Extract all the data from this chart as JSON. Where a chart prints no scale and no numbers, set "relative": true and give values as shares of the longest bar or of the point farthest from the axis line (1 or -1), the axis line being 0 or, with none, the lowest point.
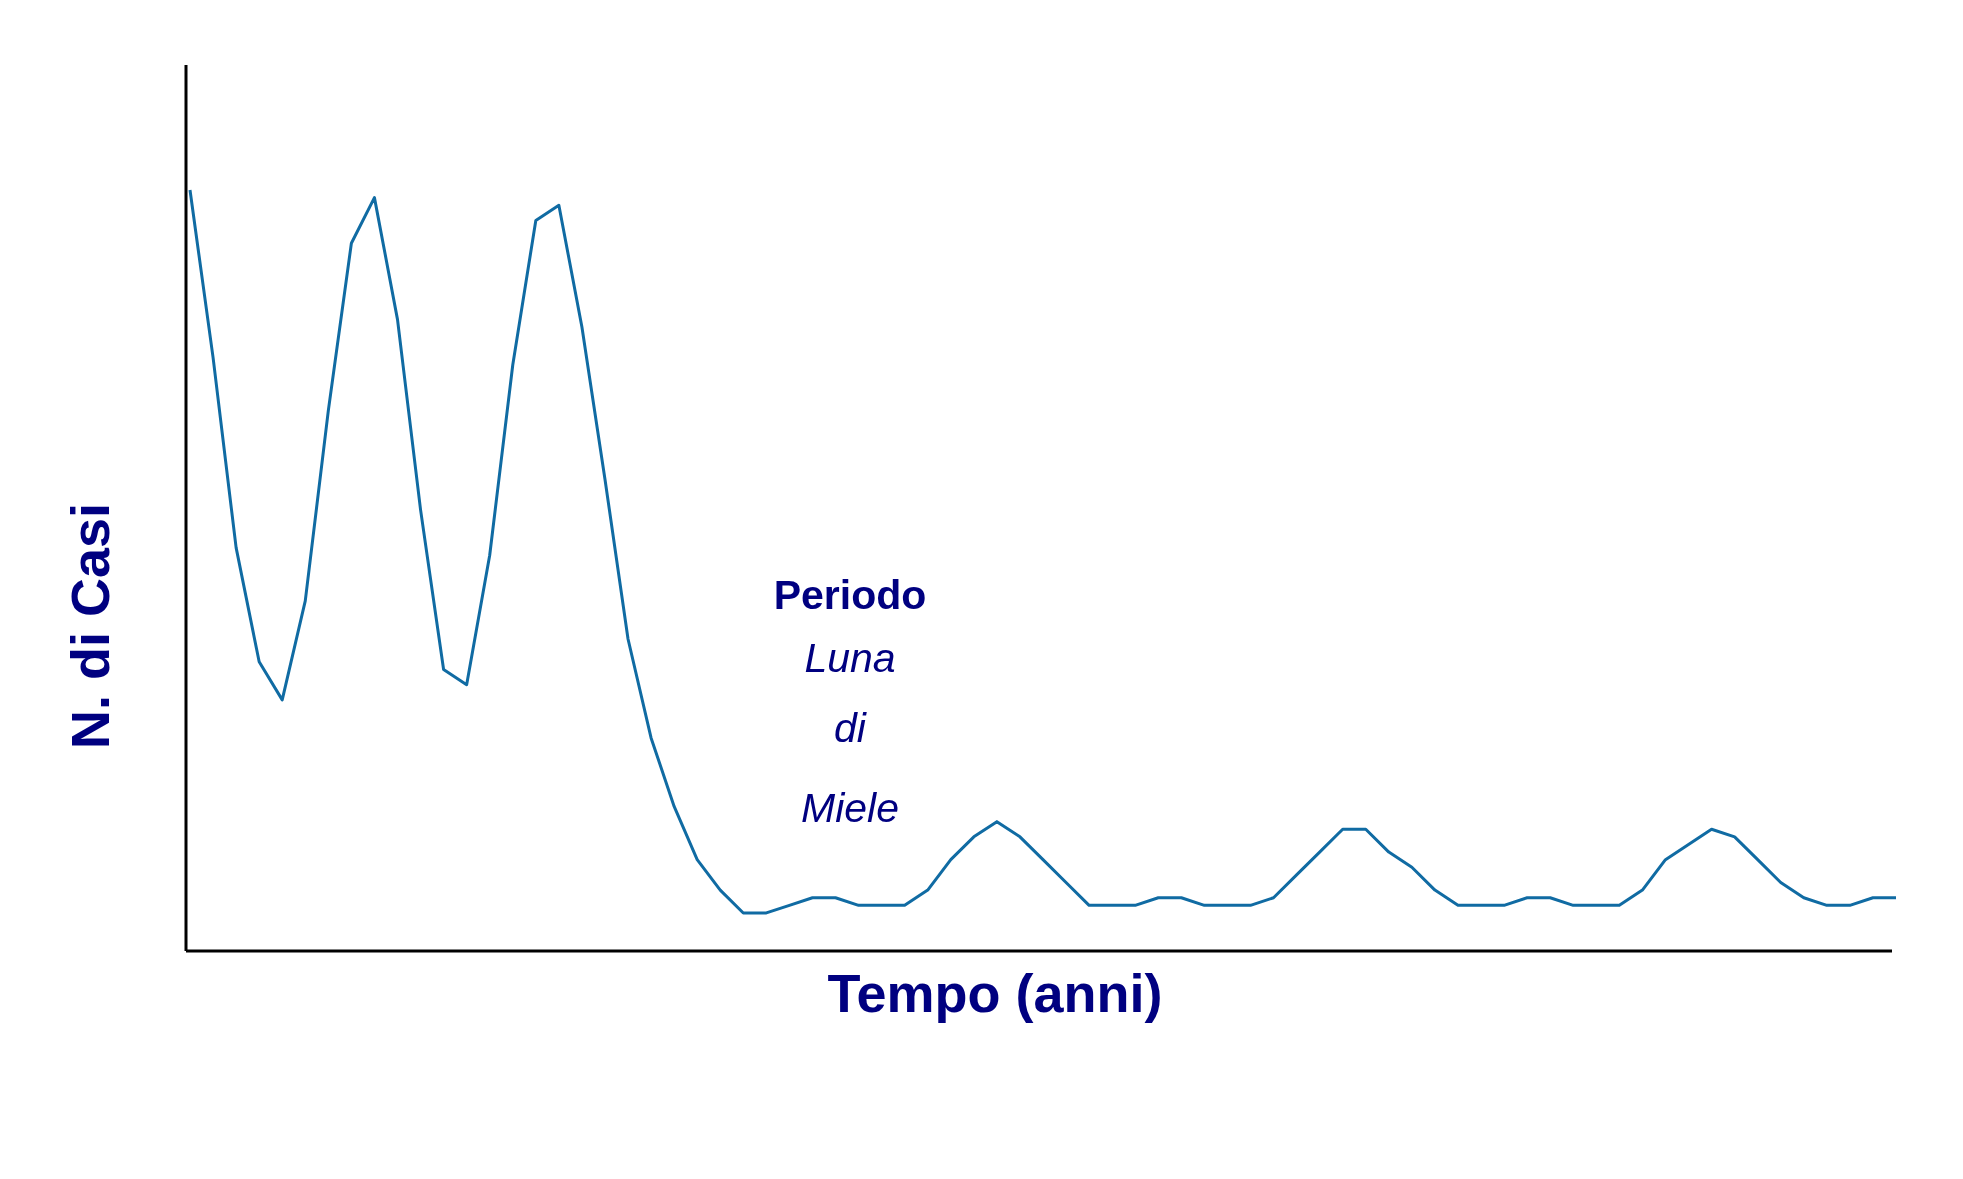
{
  "chart_data": {
    "type": "line",
    "relative": true,
    "xlabel": "Tempo (anni)",
    "ylabel": "N. di Casi",
    "annotations": [
      "Periodo",
      "Luna di Miele"
    ],
    "marker": "none",
    "line_style": "solid",
    "categories": [
      null,
      null,
      null,
      null,
      null,
      null,
      null,
      null,
      null,
      null,
      null,
      null,
      null,
      null,
      null,
      null,
      null,
      null,
      null,
      null,
      null,
      null,
      null,
      null,
      null,
      null,
      null,
      null,
      null,
      null,
      null,
      null,
      null,
      null,
      null,
      null,
      null,
      null,
      null,
      null,
      null,
      null,
      null,
      null,
      null,
      null,
      null,
      null,
      null,
      null,
      null,
      null,
      null,
      null,
      null,
      null,
      null,
      null,
      null,
      null,
      null,
      null,
      null,
      null,
      null,
      null,
      null,
      null,
      null,
      null,
      null,
      null,
      null,
      null,
      null
    ],
    "series": [
      {
        "color": "#106ba3",
        "values": [
          1.0,
          0.78,
          0.53,
          0.38,
          0.33,
          0.46,
          0.71,
          0.93,
          0.99,
          0.83,
          0.58,
          0.37,
          0.35,
          0.52,
          0.77,
          0.96,
          0.98,
          0.82,
          0.62,
          0.41,
          0.28,
          0.19,
          0.12,
          0.08,
          0.05,
          0.05,
          0.06,
          0.07,
          0.07,
          0.06,
          0.06,
          0.06,
          0.08,
          0.12,
          0.15,
          0.17,
          0.15,
          0.12,
          0.09,
          0.06,
          0.06,
          0.06,
          0.07,
          0.07,
          0.06,
          0.06,
          0.06,
          0.07,
          0.1,
          0.13,
          0.16,
          0.16,
          0.13,
          0.11,
          0.08,
          0.06,
          0.06,
          0.06,
          0.07,
          0.07,
          0.06,
          0.06,
          0.06,
          0.08,
          0.12,
          0.14,
          0.16,
          0.15,
          0.12,
          0.09,
          0.07,
          0.06,
          0.06,
          0.07,
          0.07
        ]
      }
    ]
  }
}
